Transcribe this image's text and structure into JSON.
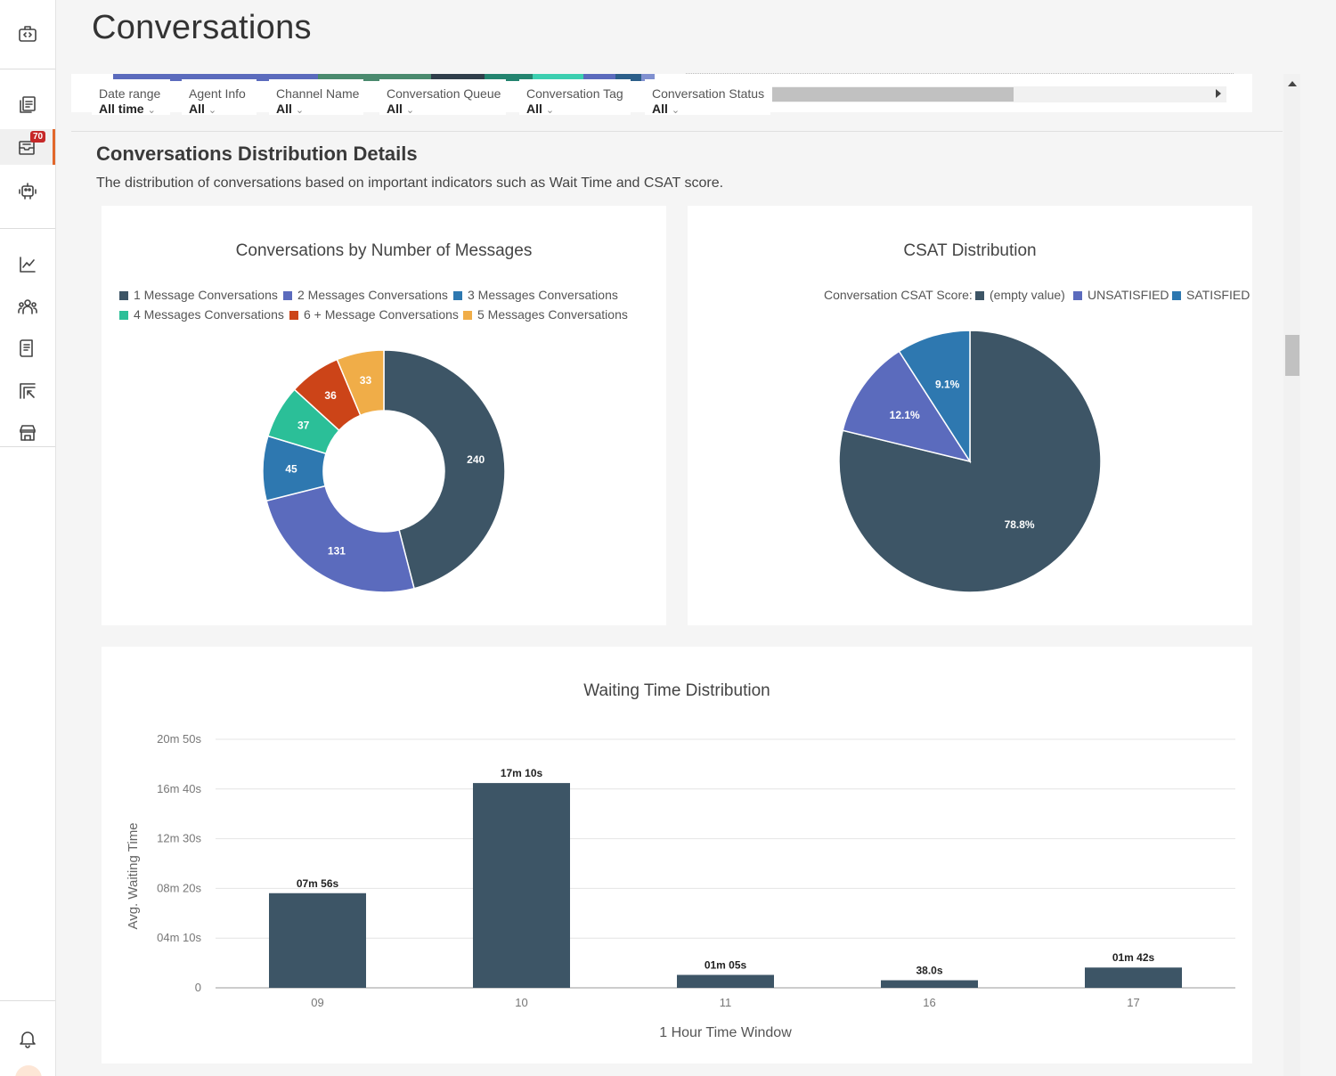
{
  "page": {
    "title": "Conversations"
  },
  "sidebar": {
    "items": [
      {
        "name": "developer-icon"
      },
      {
        "name": "documents-icon"
      },
      {
        "name": "inbox-icon",
        "badge": "70",
        "active": true
      },
      {
        "name": "bot-icon"
      },
      {
        "name": "analytics-icon"
      },
      {
        "name": "team-icon"
      },
      {
        "name": "knowledge-icon"
      },
      {
        "name": "reports-icon"
      },
      {
        "name": "store-icon"
      },
      {
        "name": "bell-icon"
      }
    ]
  },
  "filters": [
    {
      "label": "Date range",
      "value": "All time"
    },
    {
      "label": "Agent Info",
      "value": "All"
    },
    {
      "label": "Channel Name",
      "value": "All"
    },
    {
      "label": "Conversation Queue",
      "value": "All"
    },
    {
      "label": "Conversation Tag",
      "value": "All"
    },
    {
      "label": "Conversation Status",
      "value": "All"
    }
  ],
  "section": {
    "title": "Conversations Distribution Details",
    "description": "The distribution of conversations based on important indicators such as Wait Time and CSAT score."
  },
  "colors": {
    "dark_slate": "#3d5566",
    "indigo": "#5b6bbd",
    "blue": "#2e78b0",
    "teal": "#2bbf98",
    "red": "#cc4418",
    "orange": "#f0ad48"
  },
  "chart_data": [
    {
      "type": "pie",
      "variant": "donut",
      "title": "Conversations by Number of Messages",
      "legend_position": "top",
      "legend": [
        "1 Message Conversations",
        "2 Messages Conversations",
        "3 Messages Conversations",
        "4 Messages Conversations",
        "6 + Message Conversations",
        "5 Messages Conversations"
      ],
      "slices": [
        {
          "name": "1 Message Conversations",
          "value": 240,
          "label": "240",
          "color": "#3d5566"
        },
        {
          "name": "2 Messages Conversations",
          "value": 131,
          "label": "131",
          "color": "#5b6bbd"
        },
        {
          "name": "3 Messages Conversations",
          "value": 45,
          "label": "45",
          "color": "#2e78b0"
        },
        {
          "name": "4 Messages Conversations",
          "value": 37,
          "label": "37",
          "color": "#2bbf98"
        },
        {
          "name": "6 + Message Conversations",
          "value": 36,
          "label": "36",
          "color": "#cc4418"
        },
        {
          "name": "5 Messages Conversations",
          "value": 33,
          "label": "33",
          "color": "#f0ad48"
        }
      ]
    },
    {
      "type": "pie",
      "title": "CSAT Distribution",
      "legend_position": "top",
      "legend_title": "Conversation CSAT Score:",
      "legend": [
        "(empty value)",
        "UNSATISFIED",
        "SATISFIED"
      ],
      "slices": [
        {
          "name": "(empty value)",
          "value": 78.8,
          "label": "78.8%",
          "color": "#3d5566"
        },
        {
          "name": "UNSATISFIED",
          "value": 12.1,
          "label": "12.1%",
          "color": "#5b6bbd"
        },
        {
          "name": "SATISFIED",
          "value": 9.1,
          "label": "9.1%",
          "color": "#2e78b0"
        }
      ]
    },
    {
      "type": "bar",
      "title": "Waiting Time Distribution",
      "xlabel": "1 Hour Time Window",
      "ylabel": "Avg. Waiting Time",
      "categories": [
        "09",
        "10",
        "11",
        "16",
        "17"
      ],
      "values": [
        476,
        1030,
        65,
        38,
        102
      ],
      "value_labels": [
        "07m 56s",
        "17m 10s",
        "01m 05s",
        "38.0s",
        "01m 42s"
      ],
      "ylim": [
        0,
        1250
      ],
      "yticks": [
        0,
        250,
        500,
        750,
        1000,
        1250
      ],
      "ytick_labels": [
        "0",
        "04m 10s",
        "08m 20s",
        "12m 30s",
        "16m 40s",
        "20m 50s"
      ],
      "grid": true,
      "color": "#3d5566"
    }
  ]
}
